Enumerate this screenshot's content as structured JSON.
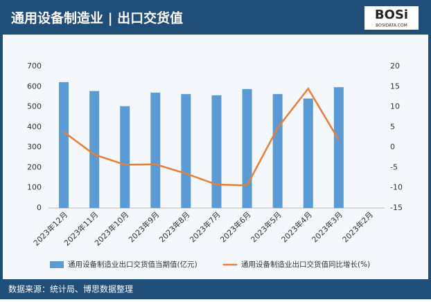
{
  "header": {
    "title": "通用设备制造业 | 出口交货值",
    "logo": "BOSi",
    "logo_sub": "BOSIDATA.COM"
  },
  "chart_data": {
    "type": "bar",
    "categories": [
      "2023年12月",
      "2023年11月",
      "2023年10月",
      "2023年9月",
      "2023年8月",
      "2023年7月",
      "2023年6月",
      "2023年5月",
      "2023年4月",
      "2023年3月",
      "2023年2月"
    ],
    "series": [
      {
        "name": "通用设备制造业出口交货值当期值(亿元)",
        "type": "bar",
        "color": "#5b9bd5",
        "values": [
          622,
          578,
          503,
          570,
          563,
          557,
          588,
          563,
          541,
          597,
          null
        ]
      },
      {
        "name": "通用设备制造业出口交货值同比增长(%)",
        "type": "line",
        "axis": "y2",
        "color": "#ed7d31",
        "values": [
          3.8,
          -1.8,
          -4.3,
          -4.2,
          -6.5,
          -9.2,
          -9.4,
          4.8,
          14.5,
          1.8,
          null
        ]
      }
    ],
    "ylim": [
      0,
      700
    ],
    "yticks": [
      0,
      100,
      200,
      300,
      400,
      500,
      600,
      700
    ],
    "y2lim": [
      -15,
      20
    ],
    "y2ticks": [
      -15,
      -10,
      -5,
      0,
      5,
      10,
      15,
      20
    ],
    "grid": false
  },
  "footer": {
    "source": "数据来源：统计局、博思数据整理"
  }
}
